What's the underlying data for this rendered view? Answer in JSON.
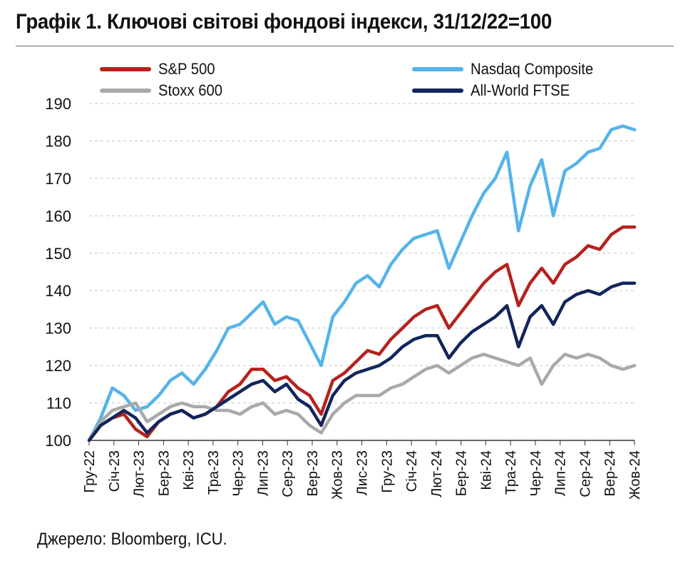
{
  "chart_data": {
    "type": "line",
    "title": "Графік 1. Ключові світові фондові індекси, 31/12/22=100",
    "xlabel": "",
    "ylabel": "",
    "ylim": [
      100,
      190
    ],
    "yticks": [
      100,
      110,
      120,
      130,
      140,
      150,
      160,
      170,
      180,
      190
    ],
    "grid": "horizontal dashed",
    "legend_position": "top",
    "x_tick_labels": [
      "Гру-22",
      "Січ-23",
      "Лют-23",
      "Бер-23",
      "Кві-23",
      "Тра-23",
      "Чер-23",
      "Лип-23",
      "Сер-23",
      "Вер-23",
      "Жов-23",
      "Лис-23",
      "Гру-23",
      "Січ-24",
      "Лют-24",
      "Бер-24",
      "Кві-24",
      "Тра-24",
      "Чер-24",
      "Лип-24",
      "Сер-24",
      "Вер-24",
      "Жов-24"
    ],
    "x": [
      0,
      0.5,
      1,
      1.5,
      2,
      2.5,
      3,
      3.5,
      4,
      4.5,
      5,
      5.5,
      6,
      6.5,
      7,
      7.5,
      8,
      8.5,
      9,
      9.5,
      10,
      10.5,
      11,
      11.5,
      12,
      12.5,
      13,
      13.5,
      14,
      14.5,
      15,
      15.5,
      16,
      16.5,
      17,
      17.5,
      18,
      18.5,
      19,
      19.5,
      20,
      20.5,
      21,
      21.5,
      22,
      22.5,
      23,
      23.5
    ],
    "series": [
      {
        "name": "S&P 500",
        "color": "#b5221d",
        "values": [
          100,
          104,
          106,
          107,
          103,
          101,
          105,
          107,
          108,
          106,
          107,
          109,
          113,
          115,
          119,
          119,
          116,
          117,
          114,
          112,
          107,
          116,
          118,
          121,
          124,
          123,
          127,
          130,
          133,
          135,
          136,
          130,
          134,
          138,
          142,
          145,
          147,
          136,
          142,
          146,
          142,
          147,
          149,
          152,
          151,
          155,
          157,
          157
        ]
      },
      {
        "name": "Nasdaq Composite",
        "color": "#55b3ea",
        "values": [
          100,
          106,
          114,
          112,
          108,
          109,
          112,
          116,
          118,
          115,
          119,
          124,
          130,
          131,
          134,
          137,
          131,
          133,
          132,
          126,
          120,
          133,
          137,
          142,
          144,
          141,
          147,
          151,
          154,
          155,
          156,
          146,
          153,
          160,
          166,
          170,
          177,
          156,
          168,
          175,
          160,
          172,
          174,
          177,
          178,
          183,
          184,
          183
        ]
      },
      {
        "name": "Stoxx 600",
        "color": "#a9a9a9",
        "values": [
          100,
          105,
          108,
          109,
          110,
          105,
          107,
          109,
          110,
          109,
          109,
          108,
          108,
          107,
          109,
          110,
          107,
          108,
          107,
          104,
          102,
          107,
          110,
          112,
          112,
          112,
          114,
          115,
          117,
          119,
          120,
          118,
          120,
          122,
          123,
          122,
          121,
          120,
          122,
          115,
          120,
          123,
          122,
          123,
          122,
          120,
          119,
          120
        ]
      },
      {
        "name": "All-World FTSE",
        "color": "#13255c",
        "values": [
          100,
          104,
          106,
          108,
          106,
          102,
          105,
          107,
          108,
          106,
          107,
          109,
          111,
          113,
          115,
          116,
          113,
          115,
          111,
          109,
          104,
          112,
          116,
          118,
          119,
          120,
          122,
          125,
          127,
          128,
          128,
          122,
          126,
          129,
          131,
          133,
          136,
          125,
          133,
          136,
          131,
          137,
          139,
          140,
          139,
          141,
          142,
          142
        ]
      }
    ]
  },
  "source": "Джерело: Bloomberg, ICU."
}
